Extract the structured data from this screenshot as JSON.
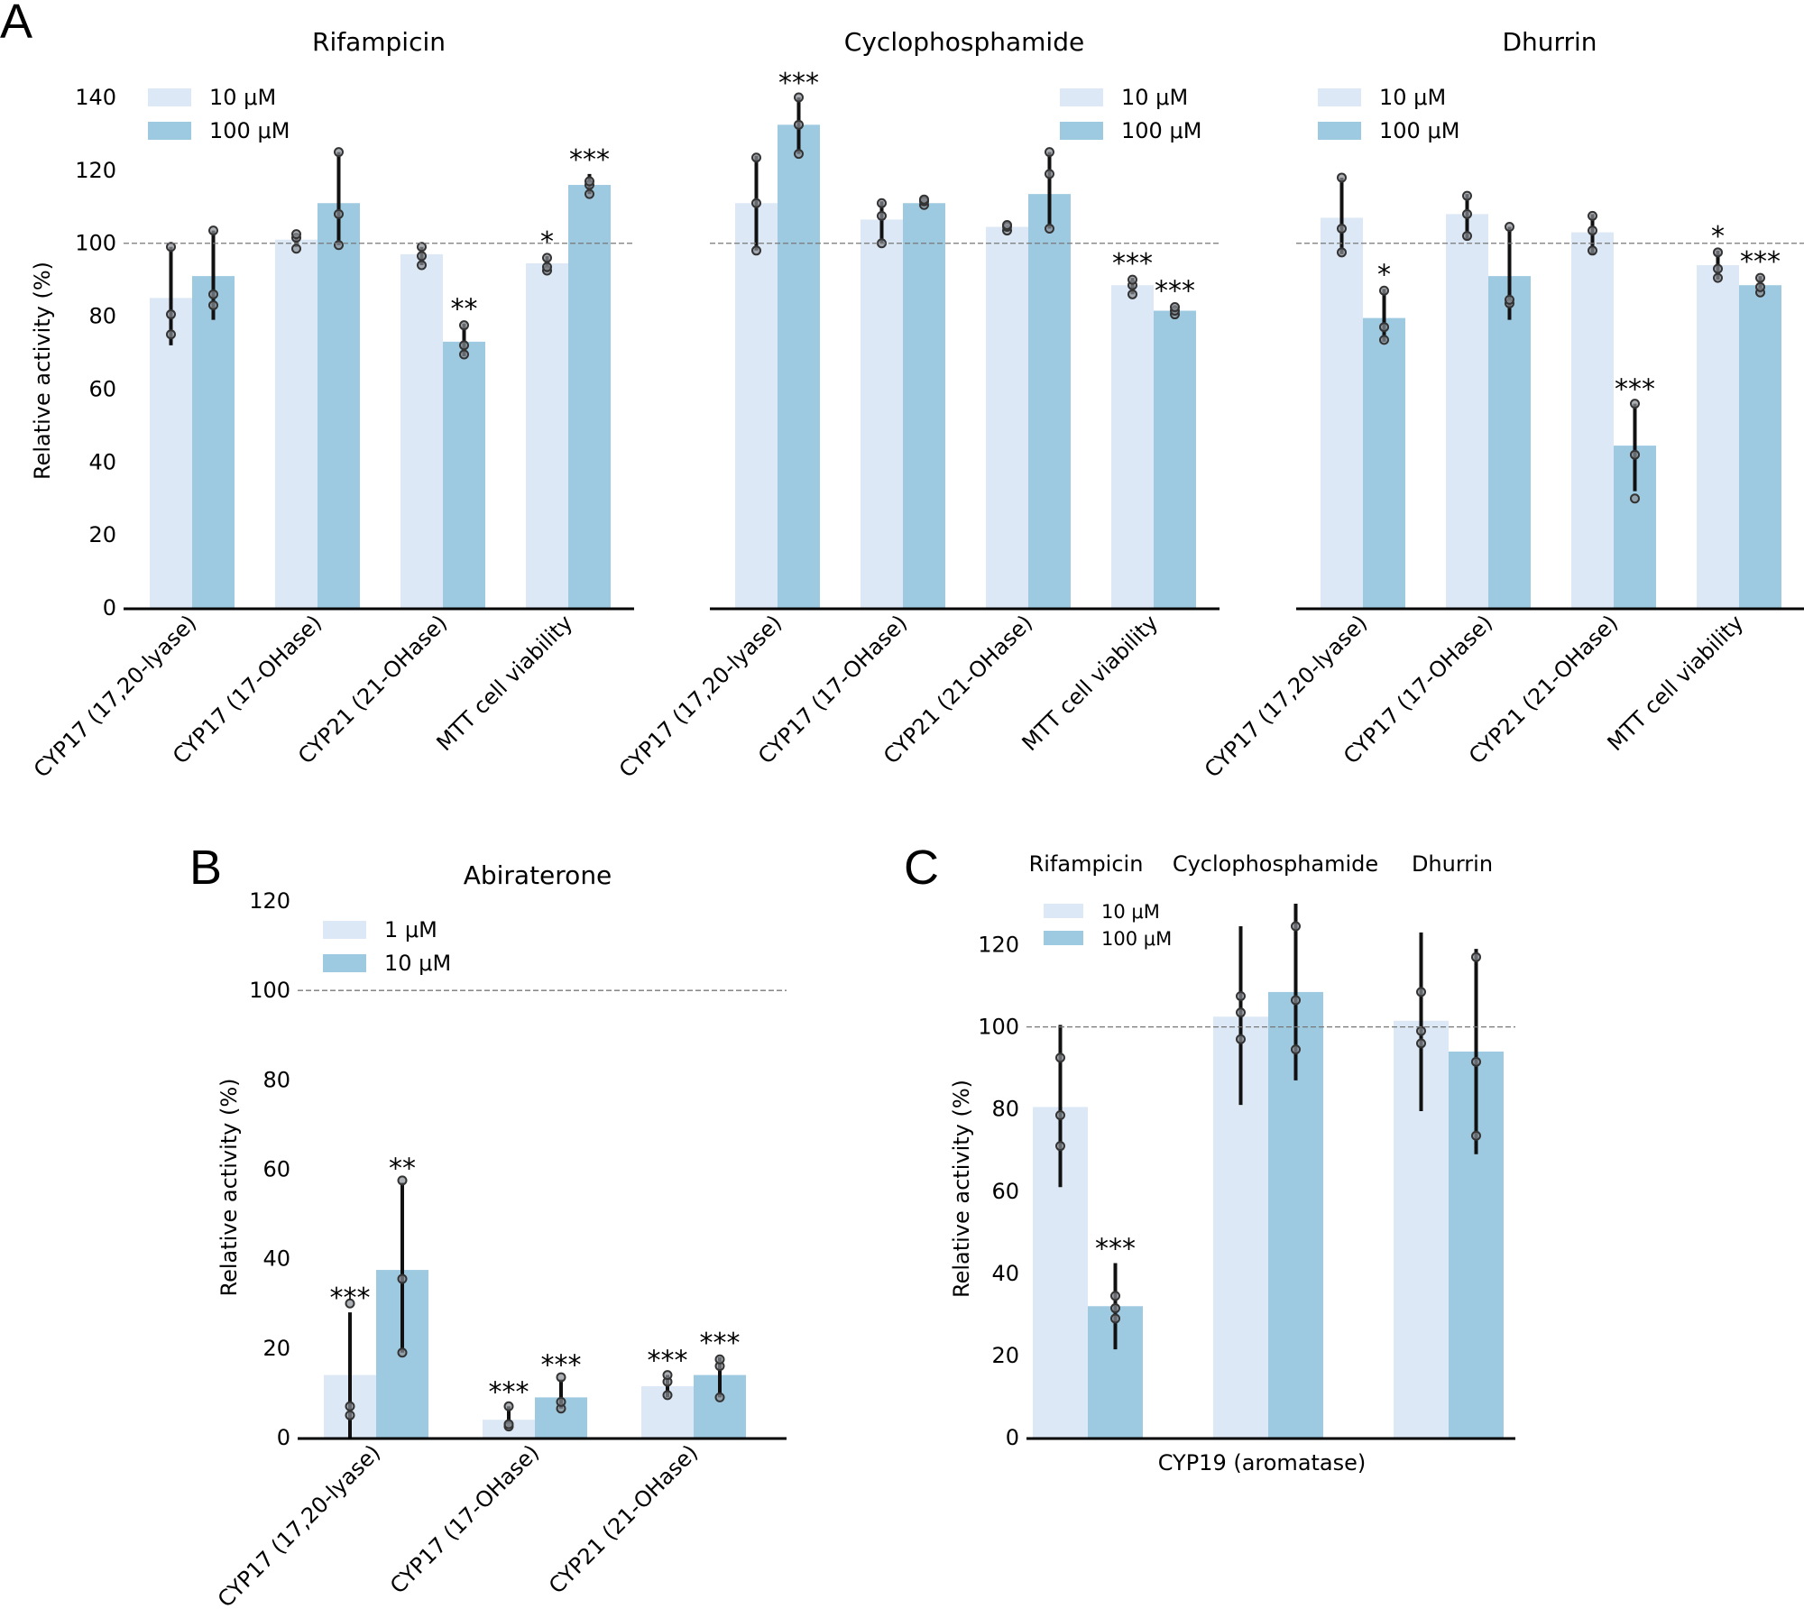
{
  "panel_labels": [
    "A",
    "B",
    "C"
  ],
  "colors": {
    "low": "#dce8f5",
    "high": "#9ecae1",
    "error": "#111111",
    "point_fill": "#8a8f95",
    "reference": "#777777"
  },
  "chart_data": [
    {
      "id": "A1",
      "type": "bar",
      "title": "Rifampicin",
      "ylabel": "Relative activity (%)",
      "ylim": [
        0,
        140
      ],
      "yticks": [
        "0",
        "20",
        "40",
        "60",
        "80",
        "100",
        "120",
        "140"
      ],
      "reference_line": 100,
      "legend": [
        "10 μM",
        "100 μM"
      ],
      "categories": [
        "CYP17 (17,20-lyase)",
        "CYP17 (17-OHase)",
        "CYP21 (21-OHase)",
        "MTT cell viability"
      ],
      "series": [
        {
          "name": "10 μM",
          "values": [
            85,
            101,
            97,
            94.5
          ],
          "err_low": [
            72,
            99,
            94,
            92
          ],
          "err_high": [
            99,
            102.5,
            99,
            96.5
          ],
          "points": [
            [
              99,
              80.5,
              75
            ],
            [
              98.5,
              101.5,
              102.5
            ],
            [
              94,
              96.5,
              99
            ],
            [
              92.5,
              93.5,
              96
            ]
          ],
          "sig": [
            "",
            "",
            "",
            "*"
          ]
        },
        {
          "name": "100 μM",
          "values": [
            91,
            111,
            73,
            116
          ],
          "err_low": [
            79,
            99.5,
            69,
            113.5
          ],
          "err_high": [
            103.5,
            125,
            78,
            119
          ],
          "points": [
            [
              103.5,
              86,
              83
            ],
            [
              99.5,
              108,
              125
            ],
            [
              69.5,
              72,
              77.5
            ],
            [
              113.5,
              116,
              117
            ]
          ],
          "sig": [
            "",
            "",
            "**",
            "***"
          ]
        }
      ]
    },
    {
      "id": "A2",
      "type": "bar",
      "title": "Cyclophosphamide",
      "ylabel": "",
      "ylim": [
        0,
        140
      ],
      "reference_line": 100,
      "legend": [
        "10 μM",
        "100 μM"
      ],
      "categories": [
        "CYP17 (17,20-lyase)",
        "CYP17 (17-OHase)",
        "CYP21 (21-OHase)",
        "MTT cell viability"
      ],
      "series": [
        {
          "name": "10 μM",
          "values": [
            111,
            106.5,
            104.5,
            88.5
          ],
          "err_low": [
            98,
            100,
            103.5,
            86
          ],
          "err_high": [
            124,
            111.5,
            105,
            90.5
          ],
          "points": [
            [
              98,
              111,
              123.5
            ],
            [
              100,
              107.5,
              111
            ],
            [
              103.5,
              104.5,
              105
            ],
            [
              86,
              88.5,
              90
            ]
          ],
          "sig": [
            "",
            "",
            "",
            "***"
          ]
        },
        {
          "name": "100 μM",
          "values": [
            132.5,
            111,
            113.5,
            81.5
          ],
          "err_low": [
            124.5,
            110.5,
            104,
            80.5
          ],
          "err_high": [
            140,
            112.5,
            125,
            83
          ],
          "points": [
            [
              124.5,
              132.5,
              140
            ],
            [
              110.5,
              111.5,
              112
            ],
            [
              104,
              119,
              125
            ],
            [
              80.5,
              81.5,
              82.5
            ]
          ],
          "sig": [
            "***",
            "",
            "",
            "***"
          ]
        }
      ]
    },
    {
      "id": "A3",
      "type": "bar",
      "title": "Dhurrin",
      "ylabel": "",
      "ylim": [
        0,
        140
      ],
      "reference_line": 100,
      "legend": [
        "10 μM",
        "100 μM"
      ],
      "categories": [
        "CYP17 (17,20-lyase)",
        "CYP17 (17-OHase)",
        "CYP21 (21-OHase)",
        "MTT cell viability"
      ],
      "series": [
        {
          "name": "10 μM",
          "values": [
            107,
            108,
            103,
            94
          ],
          "err_low": [
            97,
            101,
            97,
            90
          ],
          "err_high": [
            118,
            113.5,
            108,
            98
          ],
          "points": [
            [
              97.5,
              104,
              118
            ],
            [
              102,
              108,
              113
            ],
            [
              98,
              103.5,
              107.5
            ],
            [
              90.5,
              93,
              97.5
            ]
          ],
          "sig": [
            "",
            "",
            "",
            "*"
          ]
        },
        {
          "name": "100 μM",
          "values": [
            79.5,
            91,
            44.5,
            88.5
          ],
          "err_low": [
            73,
            79,
            32,
            86.5
          ],
          "err_high": [
            87.5,
            104.5,
            56,
            91
          ],
          "points": [
            [
              73.5,
              77,
              87
            ],
            [
              83.5,
              84.5,
              104.5
            ],
            [
              30,
              42,
              56
            ],
            [
              86.5,
              88,
              90.5
            ]
          ],
          "sig": [
            "*",
            "",
            "***",
            "***"
          ]
        }
      ]
    },
    {
      "id": "B",
      "type": "bar",
      "title": "Abiraterone",
      "ylabel": "Relative activity (%)",
      "ylim": [
        0,
        120
      ],
      "yticks": [
        "0",
        "20",
        "40",
        "60",
        "80",
        "100",
        "120"
      ],
      "reference_line": 100,
      "legend": [
        "1 μM",
        "10 μM"
      ],
      "categories": [
        "CYP17 (17,20-lyase)",
        "CYP17 (17-OHase)",
        "CYP21 (21-OHase)"
      ],
      "series": [
        {
          "name": "1 μM",
          "values": [
            14,
            4,
            11.5
          ],
          "err_low": [
            0,
            2,
            9
          ],
          "err_high": [
            28,
            7,
            14
          ],
          "points": [
            [
              30,
              7,
              5
            ],
            [
              2.5,
              3,
              7
            ],
            [
              9.5,
              12.5,
              14
            ]
          ],
          "sig": [
            "***",
            "***",
            "***"
          ]
        },
        {
          "name": "10 μM",
          "values": [
            37.5,
            9,
            14
          ],
          "err_low": [
            19,
            6.5,
            9
          ],
          "err_high": [
            57,
            13,
            18
          ],
          "points": [
            [
              19,
              35.5,
              57.5
            ],
            [
              6.5,
              8,
              13.5
            ],
            [
              9,
              16,
              17.5
            ]
          ],
          "sig": [
            "**",
            "***",
            "***"
          ]
        }
      ]
    },
    {
      "id": "C",
      "type": "bar",
      "group_titles": [
        "Rifampicin",
        "Cyclophosphamide",
        "Dhurrin"
      ],
      "xlabel": "CYP19 (aromatase)",
      "ylabel": "Relative activity (%)",
      "ylim": [
        0,
        130
      ],
      "yticks": [
        "0",
        "20",
        "40",
        "60",
        "80",
        "100",
        "120"
      ],
      "reference_line": 100,
      "legend": [
        "10 μM",
        "100 μM"
      ],
      "series": [
        {
          "name": "10 μM",
          "values": [
            80.5,
            102.5,
            101.5
          ],
          "err_low": [
            61,
            81,
            79.5
          ],
          "err_high": [
            100.5,
            124.5,
            123
          ],
          "points": [
            [
              71,
              78.5,
              92.5
            ],
            [
              97,
              103.5,
              107.5
            ],
            [
              96,
              99,
              108.5
            ]
          ],
          "sig": [
            "",
            "",
            ""
          ]
        },
        {
          "name": "100 μM",
          "values": [
            32,
            108.5,
            94
          ],
          "err_low": [
            21.5,
            87,
            69
          ],
          "err_high": [
            42.5,
            130,
            119
          ],
          "points": [
            [
              29,
              31.5,
              34.5
            ],
            [
              94.5,
              106.5,
              124.5
            ],
            [
              73.5,
              91.5,
              117
            ]
          ],
          "sig": [
            "***",
            "",
            ""
          ]
        }
      ]
    }
  ]
}
